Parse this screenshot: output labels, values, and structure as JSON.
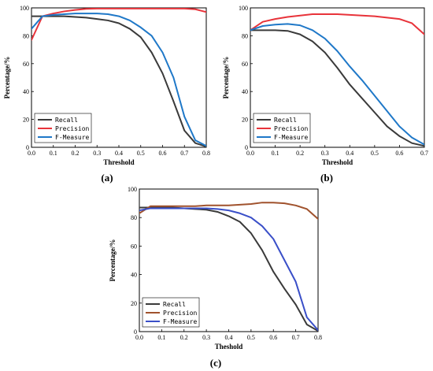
{
  "chart_data": [
    {
      "type": "line",
      "panel_label": "(a)",
      "xlabel": "Threshold",
      "ylabel": "Percentage/%",
      "xlim": [
        0.0,
        0.8
      ],
      "ylim": [
        0,
        100
      ],
      "xticks": [
        "0.0",
        "0.1",
        "0.2",
        "0.3",
        "0.4",
        "0.5",
        "0.6",
        "0.7",
        "0.8"
      ],
      "yticks": [
        "0",
        "20",
        "40",
        "60",
        "80",
        "100"
      ],
      "legend_position": "bottom-left",
      "series": [
        {
          "name": "Recall",
          "color": "#3a3a3a",
          "x": [
            0.0,
            0.05,
            0.1,
            0.15,
            0.2,
            0.25,
            0.3,
            0.35,
            0.4,
            0.45,
            0.5,
            0.55,
            0.6,
            0.65,
            0.7,
            0.75,
            0.8
          ],
          "y": [
            94,
            94,
            94,
            94,
            93.5,
            93,
            92,
            91,
            89,
            85,
            79,
            68,
            53,
            33,
            12,
            3,
            0.5
          ]
        },
        {
          "name": "Precision",
          "color": "#e8333a",
          "x": [
            0.0,
            0.05,
            0.1,
            0.15,
            0.2,
            0.25,
            0.3,
            0.35,
            0.4,
            0.45,
            0.5,
            0.55,
            0.6,
            0.65,
            0.7,
            0.75,
            0.8
          ],
          "y": [
            77,
            94,
            96,
            97.5,
            98.5,
            99.3,
            99.5,
            99.5,
            99.5,
            99.5,
            99.5,
            99.5,
            99.5,
            99.5,
            99.5,
            99,
            97
          ]
        },
        {
          "name": "F-Measure",
          "color": "#1f78c8",
          "x": [
            0.0,
            0.05,
            0.1,
            0.15,
            0.2,
            0.25,
            0.3,
            0.35,
            0.4,
            0.45,
            0.5,
            0.55,
            0.6,
            0.65,
            0.7,
            0.75,
            0.8
          ],
          "y": [
            85,
            94,
            95,
            95.5,
            96,
            96,
            96,
            95.5,
            94,
            91,
            86,
            80,
            68,
            50,
            22,
            5,
            1
          ]
        }
      ]
    },
    {
      "type": "line",
      "panel_label": "(b)",
      "xlabel": "Threshold",
      "ylabel": "Percentage/%",
      "xlim": [
        0.0,
        0.7
      ],
      "ylim": [
        0,
        100
      ],
      "xticks": [
        "0.0",
        "0.1",
        "0.2",
        "0.3",
        "0.4",
        "0.5",
        "0.6",
        "0.7"
      ],
      "yticks": [
        "0",
        "20",
        "40",
        "60",
        "80",
        "100"
      ],
      "legend_position": "bottom-left",
      "series": [
        {
          "name": "Recall",
          "color": "#3a3a3a",
          "x": [
            0.0,
            0.05,
            0.1,
            0.15,
            0.2,
            0.25,
            0.3,
            0.35,
            0.4,
            0.45,
            0.5,
            0.55,
            0.6,
            0.65,
            0.7
          ],
          "y": [
            84,
            84,
            84,
            83.5,
            81,
            76,
            68,
            57,
            45,
            35,
            25,
            15,
            8,
            3,
            1
          ]
        },
        {
          "name": "Precision",
          "color": "#e8333a",
          "x": [
            0.0,
            0.05,
            0.1,
            0.15,
            0.2,
            0.25,
            0.3,
            0.35,
            0.4,
            0.45,
            0.5,
            0.55,
            0.6,
            0.65,
            0.7
          ],
          "y": [
            84,
            90,
            92,
            93.5,
            94.5,
            95.5,
            95.5,
            95.5,
            95,
            94.5,
            94,
            93,
            92,
            89,
            81
          ]
        },
        {
          "name": "F-Measure",
          "color": "#1f78c8",
          "x": [
            0.0,
            0.05,
            0.1,
            0.15,
            0.2,
            0.25,
            0.3,
            0.35,
            0.4,
            0.45,
            0.5,
            0.55,
            0.6,
            0.65,
            0.7
          ],
          "y": [
            84,
            87,
            88,
            88.5,
            87.5,
            84,
            78,
            69,
            58,
            48,
            37,
            26,
            15,
            7,
            2
          ]
        }
      ]
    },
    {
      "type": "line",
      "panel_label": "(c)",
      "xlabel": "Theshold",
      "ylabel": "Percentage/%",
      "xlim": [
        0.0,
        0.8
      ],
      "ylim": [
        0,
        100
      ],
      "xticks": [
        "0.0",
        "0.1",
        "0.2",
        "0.3",
        "0.4",
        "0.5",
        "0.6",
        "0.7",
        "0.8"
      ],
      "yticks": [
        "0",
        "20",
        "40",
        "60",
        "80",
        "100"
      ],
      "legend_position": "bottom-left",
      "series": [
        {
          "name": "Recall",
          "color": "#3a3a3a",
          "x": [
            0.0,
            0.05,
            0.1,
            0.15,
            0.2,
            0.25,
            0.3,
            0.35,
            0.4,
            0.45,
            0.5,
            0.55,
            0.6,
            0.65,
            0.7,
            0.75,
            0.8
          ],
          "y": [
            87,
            87,
            87,
            87,
            86.5,
            86,
            85.5,
            84,
            81,
            77,
            69,
            57,
            42,
            30,
            19,
            5,
            0.5
          ]
        },
        {
          "name": "Precision",
          "color": "#a0522d",
          "x": [
            0.0,
            0.05,
            0.1,
            0.15,
            0.2,
            0.25,
            0.3,
            0.35,
            0.4,
            0.45,
            0.5,
            0.55,
            0.6,
            0.65,
            0.7,
            0.75,
            0.8
          ],
          "y": [
            83,
            88,
            88,
            88,
            88,
            88,
            88.5,
            88.5,
            88.5,
            89,
            89.5,
            90.5,
            90.5,
            90,
            88.5,
            86,
            79
          ]
        },
        {
          "name": "F-Measure",
          "color": "#3a4fc8",
          "x": [
            0.0,
            0.05,
            0.1,
            0.15,
            0.2,
            0.25,
            0.3,
            0.35,
            0.4,
            0.45,
            0.5,
            0.55,
            0.6,
            0.65,
            0.7,
            0.75,
            0.8
          ],
          "y": [
            85,
            86.5,
            86.5,
            86.5,
            86.5,
            86.5,
            86.5,
            86,
            85,
            83,
            80,
            74,
            65,
            50,
            35,
            10,
            1
          ]
        }
      ]
    }
  ]
}
